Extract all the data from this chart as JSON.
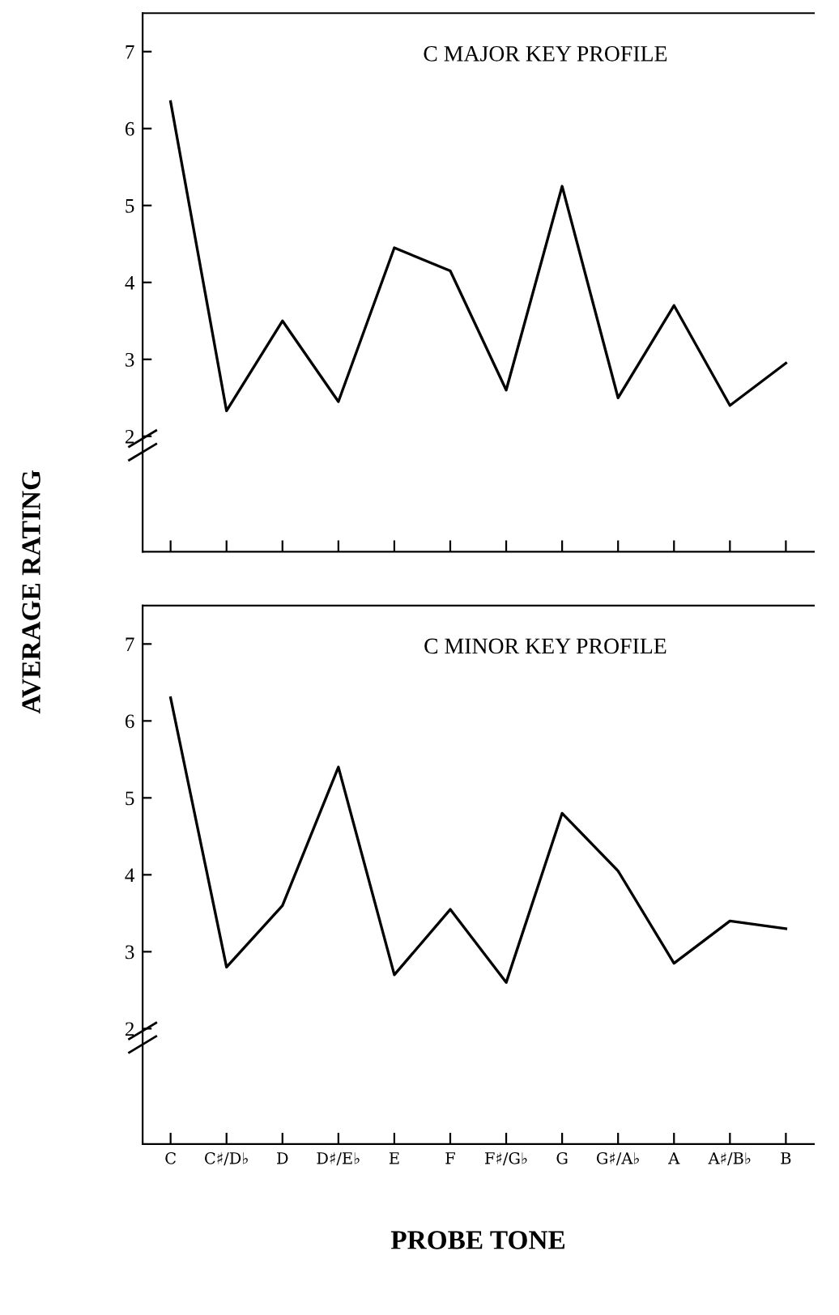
{
  "chart_data": [
    {
      "type": "line",
      "title": "C MAJOR KEY PROFILE",
      "ylabel": "AVERAGE RATING",
      "categories": [
        null,
        null,
        null,
        null,
        null,
        null,
        null,
        null,
        null,
        null,
        null,
        null
      ],
      "series": [
        {
          "color": "#000000",
          "values": [
            6.35,
            2.33,
            3.5,
            2.45,
            4.45,
            4.15,
            2.6,
            5.25,
            2.5,
            3.7,
            2.4,
            2.95
          ]
        }
      ],
      "ylim": [
        0.5,
        7.5
      ],
      "yticks": [
        2,
        3,
        4,
        5,
        6,
        7
      ],
      "tick_labels": "y",
      "grid": false,
      "legend": false,
      "marker": "none",
      "line_style": "solid"
    },
    {
      "type": "line",
      "title": "C MINOR KEY PROFILE",
      "xlabel": "PROBE TONE",
      "categories": [
        "C",
        "C♯/D♭",
        "D",
        "D♯/E♭",
        "E",
        "F",
        "F♯/G♭",
        "G",
        "G♯/A♭",
        "A",
        "A♯/B♭",
        "B"
      ],
      "series": [
        {
          "color": "#000000",
          "values": [
            6.3,
            2.8,
            3.6,
            5.4,
            2.7,
            3.55,
            2.6,
            4.8,
            4.05,
            2.85,
            3.4,
            3.3
          ]
        }
      ],
      "ylim": [
        0.5,
        7.5
      ],
      "yticks": [
        2,
        3,
        4,
        5,
        6,
        7
      ],
      "grid": false,
      "legend": false,
      "marker": "none",
      "line_style": "solid"
    }
  ]
}
